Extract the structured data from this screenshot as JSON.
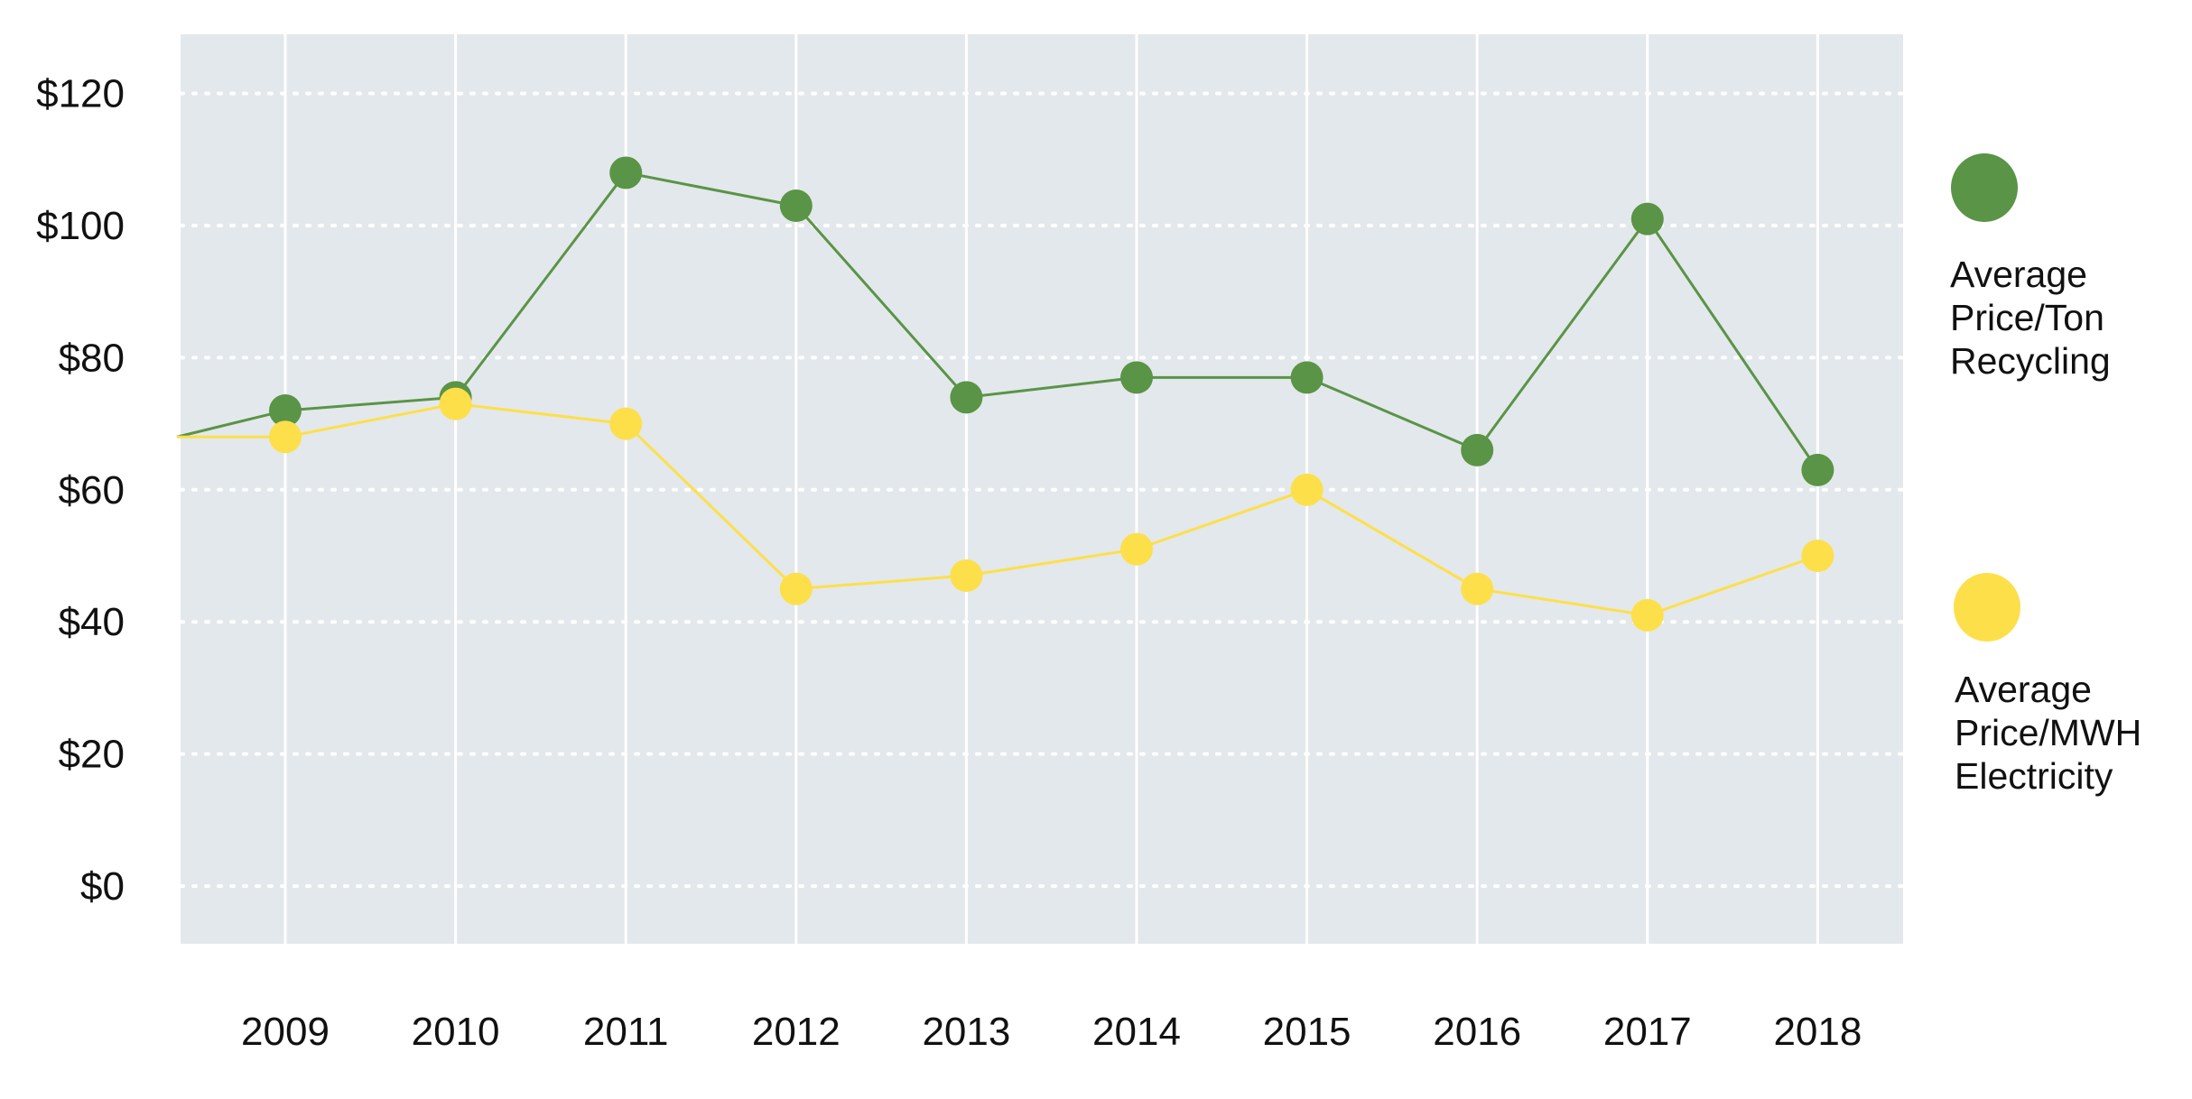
{
  "chart_data": {
    "type": "line",
    "title": "",
    "xlabel": "",
    "ylabel": "",
    "x": [
      "2009",
      "2010",
      "2011",
      "2012",
      "2013",
      "2014",
      "2015",
      "2016",
      "2017",
      "2018"
    ],
    "ylim": [
      -8,
      130
    ],
    "yticks": [
      0,
      20,
      40,
      60,
      80,
      100,
      120
    ],
    "ytick_labels": [
      "$0",
      "$20",
      "$40",
      "$60",
      "$80",
      "$100",
      "$120"
    ],
    "grid": {
      "horizontal": "dotted",
      "vertical": "solid"
    },
    "series": [
      {
        "name": "Average Price/Ton Recycling",
        "legend_lines": [
          "Average",
          "Price/Ton",
          "Recycling"
        ],
        "color": "#5a9446",
        "start_value": 68,
        "values": [
          72,
          74,
          108,
          103,
          74,
          77,
          77,
          66,
          101,
          63
        ]
      },
      {
        "name": "Average Price/MWH Electricity",
        "legend_lines": [
          "Average",
          "Price/MWH",
          "Electricity"
        ],
        "color": "#fddf4a",
        "start_value": 68,
        "values": [
          68,
          73,
          70,
          45,
          47,
          51,
          60,
          45,
          41,
          50
        ]
      }
    ],
    "legend_position": "right",
    "colors": {
      "plot_background": "#e3e8ec",
      "grid": "#ffffff",
      "text": "#111111"
    }
  }
}
